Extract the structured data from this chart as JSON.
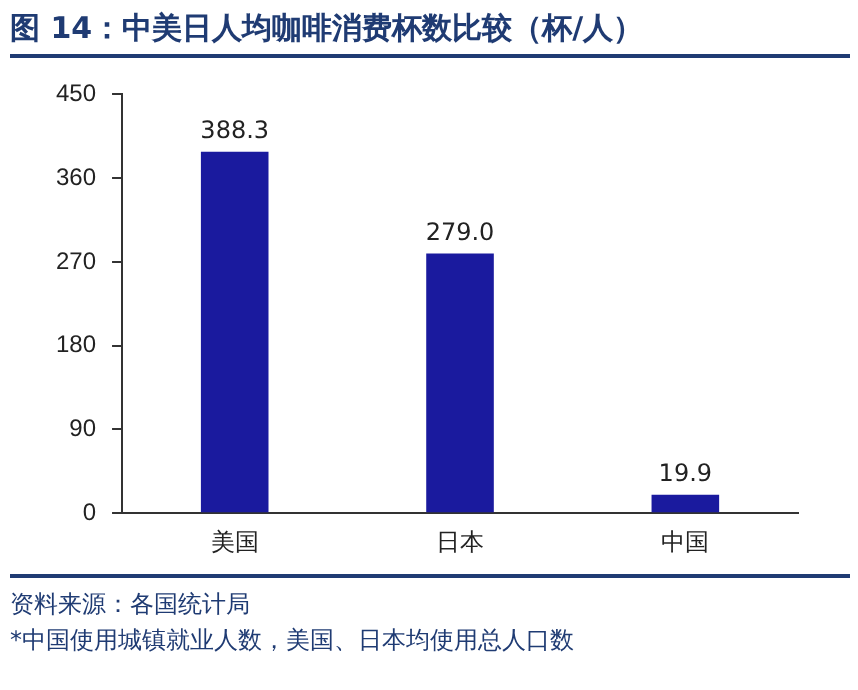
{
  "chart_data": {
    "type": "bar",
    "title": "图 14：中美日人均咖啡消费杯数比较（杯/人）",
    "categories": [
      "美国",
      "日本",
      "中国"
    ],
    "values": [
      388.3,
      279.0,
      19.9
    ],
    "value_labels": [
      "388.3",
      "279.0",
      "19.9"
    ],
    "color": "#1a1a9e",
    "ylim": [
      0,
      450
    ],
    "yticks": [
      0,
      90,
      180,
      270,
      360,
      450
    ],
    "grid": false,
    "legend": false,
    "annotations": [
      "资料来源：各国统计局",
      "*中国使用城镇就业人数，美国、日本均使用总人口数"
    ]
  }
}
